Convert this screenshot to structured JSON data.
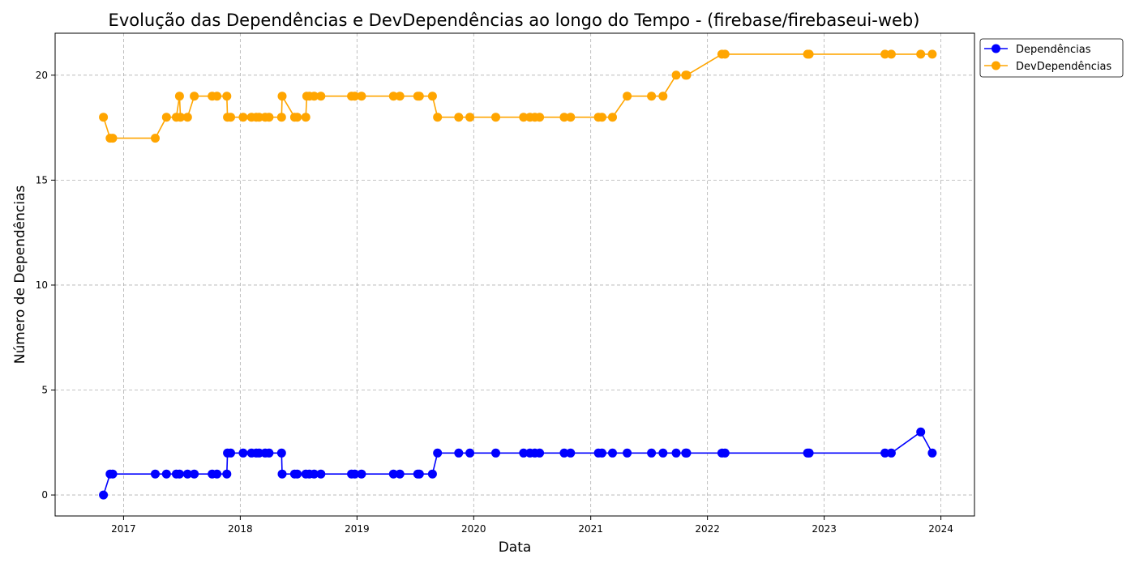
{
  "chart_data": {
    "type": "line",
    "title": "Evolução das Dependências e DevDependências ao longo do Tempo - (firebase/firebaseui-web)",
    "xlabel": "Data",
    "ylabel": "Número de Dependências",
    "xlim": [
      "2016-06-01",
      "2024-04-15"
    ],
    "ylim": [
      -1,
      22
    ],
    "x_ticks": [
      "2017-01-01",
      "2018-01-01",
      "2019-01-01",
      "2020-01-01",
      "2021-01-01",
      "2022-01-01",
      "2023-01-01",
      "2024-01-01"
    ],
    "x_tick_labels": [
      "2017",
      "2018",
      "2019",
      "2020",
      "2021",
      "2022",
      "2023",
      "2024"
    ],
    "y_ticks": [
      0,
      5,
      10,
      15,
      20
    ],
    "y_tick_labels": [
      "0",
      "5",
      "10",
      "15",
      "20"
    ],
    "grid": true,
    "legend_position": "outside-top-right",
    "series": [
      {
        "name": "Dependências",
        "color": "#0000ff",
        "marker": "circle",
        "points": [
          [
            "2016-10-30",
            0
          ],
          [
            "2016-11-20",
            1
          ],
          [
            "2016-11-28",
            1
          ],
          [
            "2017-04-10",
            1
          ],
          [
            "2017-05-15",
            1
          ],
          [
            "2017-06-15",
            1
          ],
          [
            "2017-06-25",
            1
          ],
          [
            "2017-07-20",
            1
          ],
          [
            "2017-08-10",
            1
          ],
          [
            "2017-10-05",
            1
          ],
          [
            "2017-10-20",
            1
          ],
          [
            "2017-11-20",
            1
          ],
          [
            "2017-11-22",
            2
          ],
          [
            "2017-12-02",
            2
          ],
          [
            "2018-01-10",
            2
          ],
          [
            "2018-02-05",
            2
          ],
          [
            "2018-02-20",
            2
          ],
          [
            "2018-03-01",
            2
          ],
          [
            "2018-03-20",
            2
          ],
          [
            "2018-04-01",
            2
          ],
          [
            "2018-05-10",
            2
          ],
          [
            "2018-05-12",
            1
          ],
          [
            "2018-06-20",
            1
          ],
          [
            "2018-06-28",
            1
          ],
          [
            "2018-07-25",
            1
          ],
          [
            "2018-08-05",
            1
          ],
          [
            "2018-08-20",
            1
          ],
          [
            "2018-09-10",
            1
          ],
          [
            "2018-12-15",
            1
          ],
          [
            "2018-12-25",
            1
          ],
          [
            "2019-01-15",
            1
          ],
          [
            "2019-04-25",
            1
          ],
          [
            "2019-05-15",
            1
          ],
          [
            "2019-07-10",
            1
          ],
          [
            "2019-07-15",
            1
          ],
          [
            "2019-08-25",
            1
          ],
          [
            "2019-09-10",
            2
          ],
          [
            "2019-11-15",
            2
          ],
          [
            "2019-12-20",
            2
          ],
          [
            "2020-03-10",
            2
          ],
          [
            "2020-06-05",
            2
          ],
          [
            "2020-06-25",
            2
          ],
          [
            "2020-07-10",
            2
          ],
          [
            "2020-07-25",
            2
          ],
          [
            "2020-10-10",
            2
          ],
          [
            "2020-10-30",
            2
          ],
          [
            "2021-01-25",
            2
          ],
          [
            "2021-02-05",
            2
          ],
          [
            "2021-03-10",
            2
          ],
          [
            "2021-04-25",
            2
          ],
          [
            "2021-07-10",
            2
          ],
          [
            "2021-08-15",
            2
          ],
          [
            "2021-09-25",
            2
          ],
          [
            "2021-10-25",
            2
          ],
          [
            "2021-10-28",
            2
          ],
          [
            "2022-02-15",
            2
          ],
          [
            "2022-02-25",
            2
          ],
          [
            "2022-11-10",
            2
          ],
          [
            "2022-11-15",
            2
          ],
          [
            "2023-07-10",
            2
          ],
          [
            "2023-07-30",
            2
          ],
          [
            "2023-10-30",
            3
          ],
          [
            "2023-12-05",
            2
          ]
        ]
      },
      {
        "name": "DevDependências",
        "color": "#ffa500",
        "marker": "circle",
        "points": [
          [
            "2016-10-30",
            18
          ],
          [
            "2016-11-20",
            17
          ],
          [
            "2016-11-28",
            17
          ],
          [
            "2017-04-10",
            17
          ],
          [
            "2017-05-15",
            18
          ],
          [
            "2017-06-15",
            18
          ],
          [
            "2017-06-25",
            19
          ],
          [
            "2017-06-28",
            18
          ],
          [
            "2017-07-20",
            18
          ],
          [
            "2017-08-10",
            19
          ],
          [
            "2017-10-05",
            19
          ],
          [
            "2017-10-20",
            19
          ],
          [
            "2017-11-20",
            19
          ],
          [
            "2017-11-22",
            18
          ],
          [
            "2017-12-02",
            18
          ],
          [
            "2018-01-10",
            18
          ],
          [
            "2018-02-05",
            18
          ],
          [
            "2018-02-20",
            18
          ],
          [
            "2018-03-01",
            18
          ],
          [
            "2018-03-20",
            18
          ],
          [
            "2018-04-01",
            18
          ],
          [
            "2018-05-10",
            18
          ],
          [
            "2018-05-12",
            19
          ],
          [
            "2018-06-20",
            18
          ],
          [
            "2018-06-28",
            18
          ],
          [
            "2018-07-25",
            18
          ],
          [
            "2018-07-28",
            19
          ],
          [
            "2018-08-05",
            19
          ],
          [
            "2018-08-20",
            19
          ],
          [
            "2018-09-10",
            19
          ],
          [
            "2018-12-15",
            19
          ],
          [
            "2018-12-25",
            19
          ],
          [
            "2019-01-15",
            19
          ],
          [
            "2019-04-25",
            19
          ],
          [
            "2019-05-15",
            19
          ],
          [
            "2019-07-10",
            19
          ],
          [
            "2019-07-15",
            19
          ],
          [
            "2019-08-25",
            19
          ],
          [
            "2019-09-10",
            18
          ],
          [
            "2019-11-15",
            18
          ],
          [
            "2019-12-20",
            18
          ],
          [
            "2020-03-10",
            18
          ],
          [
            "2020-06-05",
            18
          ],
          [
            "2020-06-25",
            18
          ],
          [
            "2020-07-10",
            18
          ],
          [
            "2020-07-25",
            18
          ],
          [
            "2020-10-10",
            18
          ],
          [
            "2020-10-30",
            18
          ],
          [
            "2021-01-25",
            18
          ],
          [
            "2021-02-05",
            18
          ],
          [
            "2021-03-10",
            18
          ],
          [
            "2021-04-25",
            19
          ],
          [
            "2021-07-10",
            19
          ],
          [
            "2021-08-15",
            19
          ],
          [
            "2021-09-25",
            20
          ],
          [
            "2021-10-25",
            20
          ],
          [
            "2021-10-28",
            20
          ],
          [
            "2022-02-15",
            21
          ],
          [
            "2022-02-25",
            21
          ],
          [
            "2022-11-10",
            21
          ],
          [
            "2022-11-15",
            21
          ],
          [
            "2023-07-10",
            21
          ],
          [
            "2023-07-30",
            21
          ],
          [
            "2023-10-30",
            21
          ],
          [
            "2023-12-05",
            21
          ]
        ]
      }
    ]
  }
}
